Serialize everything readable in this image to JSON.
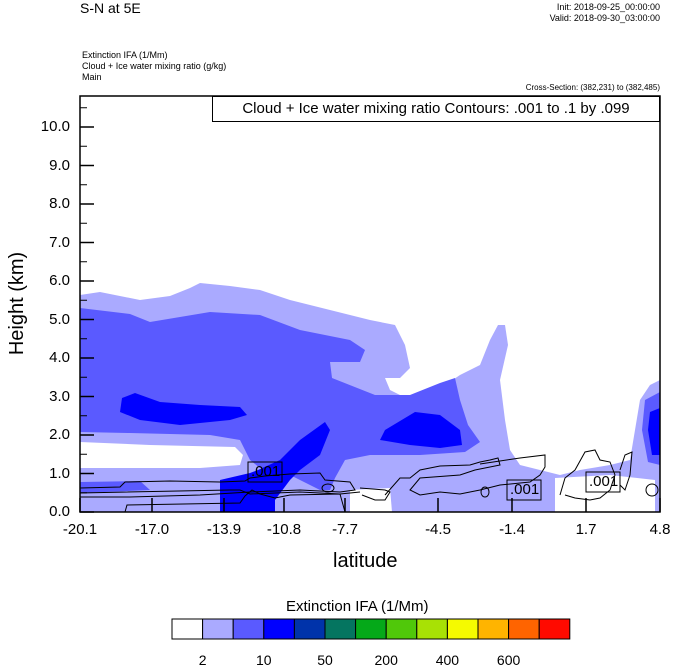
{
  "header": {
    "title": "S-N at 5E",
    "init": "Init: 2018-09-25_00:00:00",
    "valid": "Valid: 2018-09-30_03:00:00"
  },
  "subtitles": [
    "Extinction IFA   (1/Mm)",
    "Cloud + Ice water mixing ratio   (g/kg)",
    "Main"
  ],
  "cross_section": "Cross-Section: (382,231) to (382,485)",
  "chart_data": {
    "type": "heatmap",
    "title": "S-N at 5E",
    "xlabel": "latitude",
    "ylabel": "Height (km)",
    "xticks": [
      "-20.1",
      "-17.0",
      "-13.9",
      "-10.8",
      "-7.7",
      "-4.5",
      "-1.4",
      "1.7",
      "4.8"
    ],
    "yticks": [
      "0.0",
      "1.0",
      "2.0",
      "3.0",
      "4.0",
      "5.0",
      "6.0",
      "7.0",
      "8.0",
      "9.0",
      "10.0"
    ],
    "xlim": [
      -20.1,
      4.8
    ],
    "ylim": [
      0,
      10.8
    ],
    "fill_field": "Extinction IFA (1/Mm)",
    "contour_field": "Cloud + Ice water mixing ratio (g/kg)",
    "contour_info": "Cloud + Ice water mixing ratio Contours: .001 to .1 by .099",
    "contour_labels": [
      ".001",
      ".001",
      ".001"
    ],
    "colorbar": {
      "title": "Extinction IFA  (1/Mm)",
      "labels": [
        "2",
        "10",
        "50",
        "200",
        "400",
        "600"
      ],
      "colors": [
        "#ffffff",
        "#aaaaff",
        "#5a5aff",
        "#0000ff",
        "#0033aa",
        "#057560",
        "#05a919",
        "#50c80a",
        "#a8e105",
        "#f5fa00",
        "#ffb400",
        "#ff6400",
        "#ff0a00"
      ]
    },
    "grid": false
  }
}
